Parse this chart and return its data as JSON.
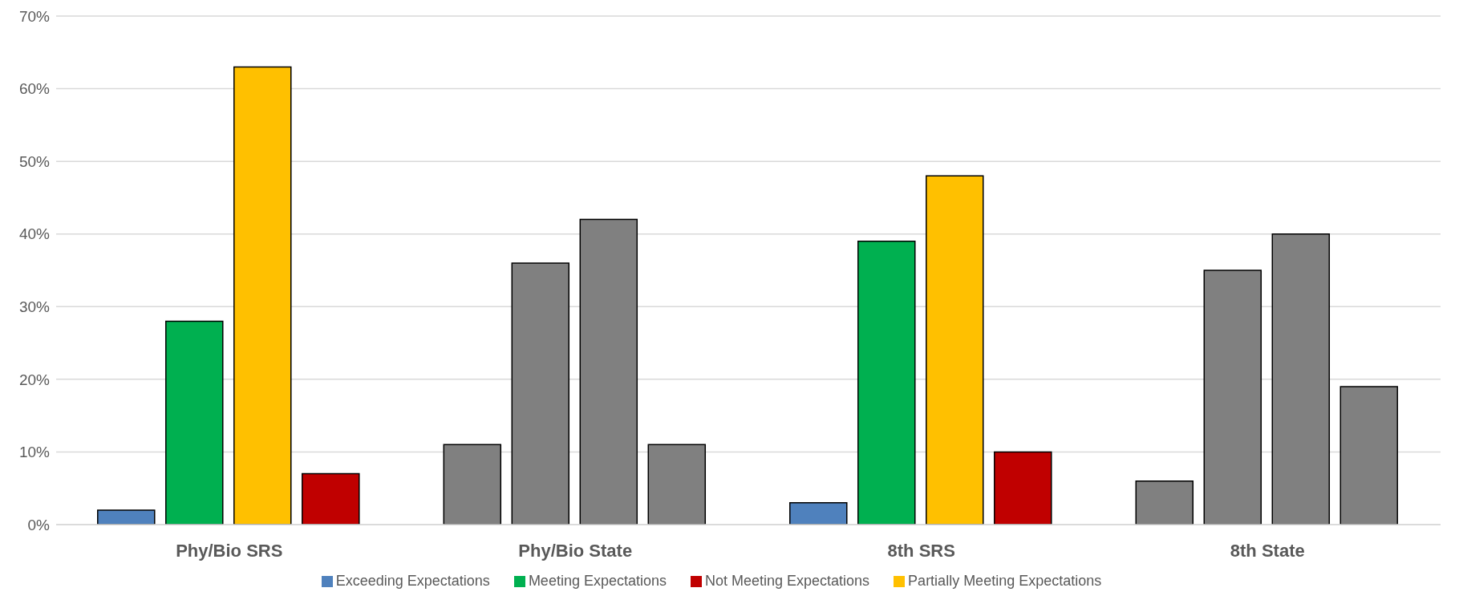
{
  "chart_data": {
    "type": "bar",
    "categories": [
      "Phy/Bio SRS",
      "Phy/Bio State",
      "8th SRS",
      "8th State"
    ],
    "series": [
      {
        "name": "Exceeding Expectations",
        "color": "#4f81bd",
        "colors": [
          "#4f81bd",
          "#808080",
          "#4f81bd",
          "#808080"
        ],
        "values": [
          2,
          11,
          3,
          6
        ]
      },
      {
        "name": "Meeting Expectations",
        "color": "#00b050",
        "colors": [
          "#00b050",
          "#808080",
          "#00b050",
          "#808080"
        ],
        "values": [
          28,
          36,
          39,
          35
        ]
      },
      {
        "name": "Partially Meeting Expectations",
        "color": "#ffc000",
        "colors": [
          "#ffc000",
          "#808080",
          "#ffc000",
          "#808080"
        ],
        "values": [
          63,
          42,
          48,
          40
        ]
      },
      {
        "name": "Not Meeting Expectations",
        "color": "#c00000",
        "colors": [
          "#c00000",
          "#808080",
          "#c00000",
          "#808080"
        ],
        "values": [
          7,
          11,
          10,
          19
        ]
      }
    ],
    "ylim": [
      0,
      70
    ],
    "yticks": [
      {
        "value": 0,
        "label": "0%"
      },
      {
        "value": 10,
        "label": "10%"
      },
      {
        "value": 20,
        "label": "20%"
      },
      {
        "value": 30,
        "label": "30%"
      },
      {
        "value": 40,
        "label": "40%"
      },
      {
        "value": 50,
        "label": "50%"
      },
      {
        "value": 60,
        "label": "60%"
      },
      {
        "value": 70,
        "label": "70%"
      }
    ],
    "grid": "y",
    "legend": "bottom"
  }
}
